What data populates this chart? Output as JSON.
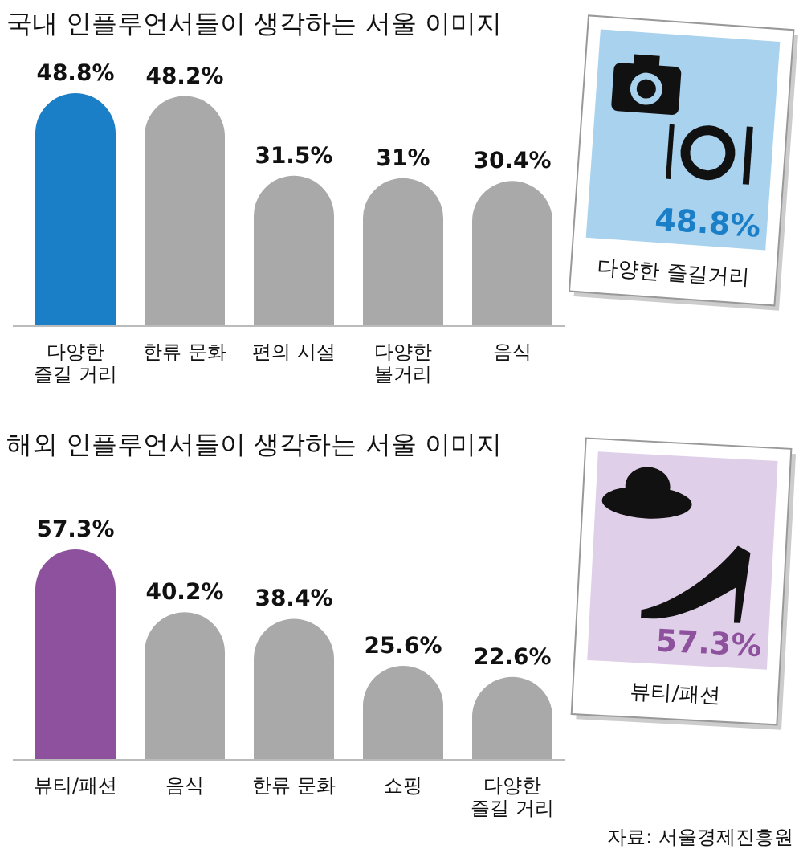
{
  "chart_data": [
    {
      "type": "bar",
      "title": "국내 인플루언서들이 생각하는 서울 이미지",
      "categories": [
        "다양한\n즐길 거리",
        "한류 문화",
        "편의 시설",
        "다양한\n볼거리",
        "음식"
      ],
      "values": [
        48.8,
        48.2,
        31.5,
        31,
        30.4
      ],
      "value_labels": [
        "48.8%",
        "48.2%",
        "31.5%",
        "31%",
        "30.4%"
      ],
      "colors": [
        "#1b7fc8",
        "#a9a9a9",
        "#a9a9a9",
        "#a9a9a9",
        "#a9a9a9"
      ],
      "annotations": [
        "48.8%",
        "다양한 즐길거리"
      ]
    },
    {
      "type": "bar",
      "title": "해외 인플루언서들이 생각하는 서울 이미지",
      "categories": [
        "뷰티/패션",
        "음식",
        "한류 문화",
        "쇼핑",
        "다양한\n즐길 거리"
      ],
      "values": [
        57.3,
        40.2,
        38.4,
        25.6,
        22.6
      ],
      "value_labels": [
        "57.3%",
        "40.2%",
        "38.4%",
        "25.6%",
        "22.6%"
      ],
      "colors": [
        "#8e519d",
        "#a9a9a9",
        "#a9a9a9",
        "#a9a9a9",
        "#a9a9a9"
      ],
      "annotations": [
        "57.3%",
        "뷰티/패션",
        "자료: 서울경제진흥원"
      ]
    }
  ]
}
